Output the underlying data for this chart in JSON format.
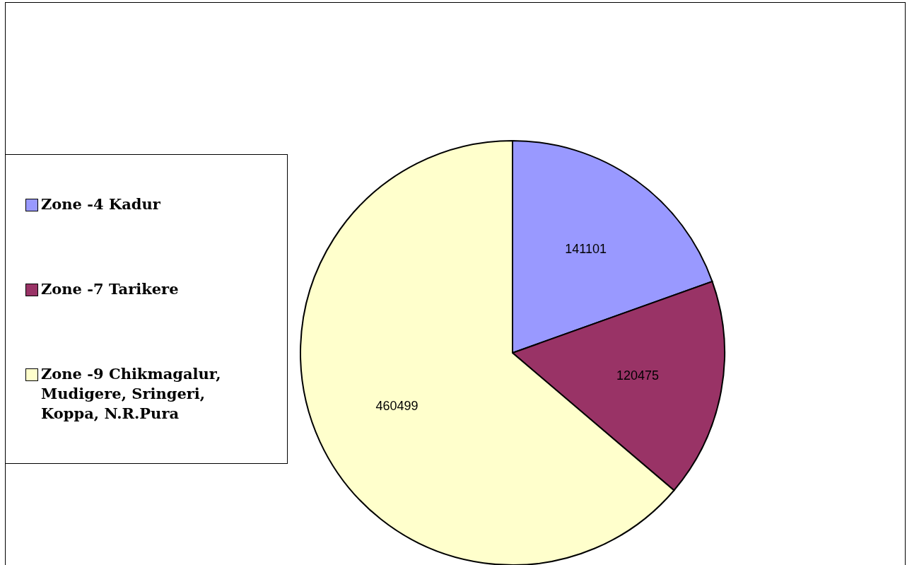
{
  "chart_data": {
    "type": "pie",
    "categories": [
      "Zone -4 Kadur",
      "Zone -7 Tarikere",
      "Zone -9 Chikmagalur, Mudigere, Sringeri, Koppa, N.R.Pura"
    ],
    "values": [
      141101,
      120475,
      460499
    ],
    "colors": [
      "#9999ff",
      "#993366",
      "#ffffcc"
    ],
    "data_labels": true,
    "legend": "left"
  }
}
